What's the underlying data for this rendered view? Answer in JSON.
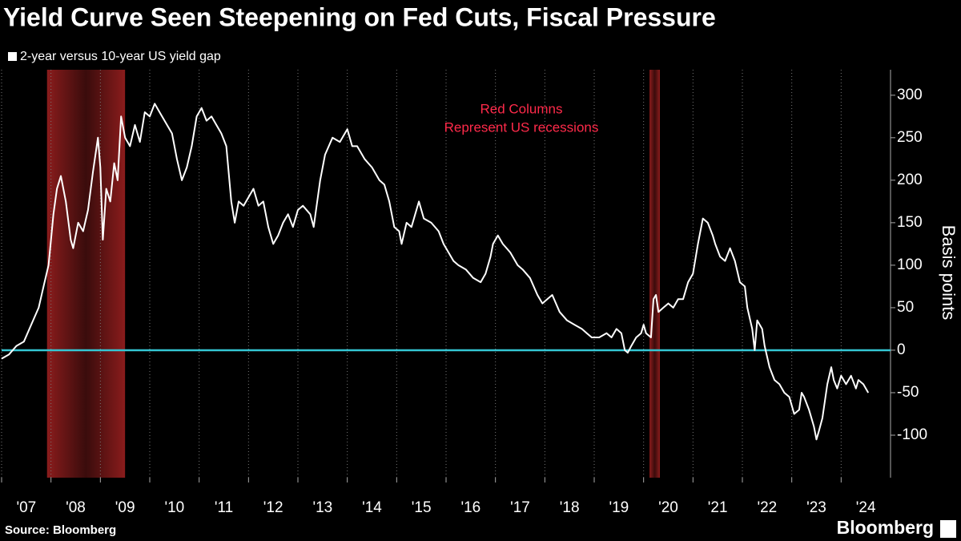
{
  "chart_data": {
    "type": "line",
    "title": "Yield Curve Seen Steepening on Fed Cuts, Fiscal Pressure",
    "ylabel": "Basis points",
    "annotation": [
      "Red Columns",
      "Represent US recessions"
    ],
    "source": "Source: Bloomberg",
    "brand": "Bloomberg",
    "xlim": [
      2007,
      2025
    ],
    "ylim": [
      -150,
      330
    ],
    "yticks": [
      -100,
      -50,
      0,
      50,
      100,
      150,
      200,
      250,
      300
    ],
    "xticks": [
      {
        "value": 2007,
        "label": "'07"
      },
      {
        "value": 2008,
        "label": "'08"
      },
      {
        "value": 2009,
        "label": "'09"
      },
      {
        "value": 2010,
        "label": "'10"
      },
      {
        "value": 2011,
        "label": "'11"
      },
      {
        "value": 2012,
        "label": "'12"
      },
      {
        "value": 2013,
        "label": "'13"
      },
      {
        "value": 2014,
        "label": "'14"
      },
      {
        "value": 2015,
        "label": "'15"
      },
      {
        "value": 2016,
        "label": "'16"
      },
      {
        "value": 2017,
        "label": "'17"
      },
      {
        "value": 2018,
        "label": "'18"
      },
      {
        "value": 2019,
        "label": "'19"
      },
      {
        "value": 2020,
        "label": "'20"
      },
      {
        "value": 2021,
        "label": "'21"
      },
      {
        "value": 2022,
        "label": "'22"
      },
      {
        "value": 2023,
        "label": "'23"
      },
      {
        "value": 2024,
        "label": "'24"
      }
    ],
    "recessions": [
      [
        2007.92,
        2009.5
      ],
      [
        2020.12,
        2020.33
      ]
    ],
    "reference_line": {
      "value": 0,
      "color": "#34c6d3"
    },
    "x": [
      2007.0,
      2007.15,
      2007.3,
      2007.45,
      2007.6,
      2007.75,
      2007.85,
      2007.95,
      2008.0,
      2008.05,
      2008.12,
      2008.2,
      2008.3,
      2008.4,
      2008.45,
      2008.55,
      2008.65,
      2008.75,
      2008.85,
      2008.95,
      2009.0,
      2009.05,
      2009.12,
      2009.2,
      2009.28,
      2009.35,
      2009.42,
      2009.5,
      2009.6,
      2009.7,
      2009.8,
      2009.9,
      2010.0,
      2010.1,
      2010.2,
      2010.3,
      2010.45,
      2010.55,
      2010.65,
      2010.75,
      2010.85,
      2010.95,
      2011.05,
      2011.15,
      2011.25,
      2011.35,
      2011.45,
      2011.55,
      2011.65,
      2011.72,
      2011.8,
      2011.9,
      2012.0,
      2012.1,
      2012.2,
      2012.3,
      2012.4,
      2012.5,
      2012.6,
      2012.7,
      2012.8,
      2012.9,
      2013.0,
      2013.1,
      2013.25,
      2013.32,
      2013.45,
      2013.55,
      2013.7,
      2013.85,
      2013.95,
      2014.0,
      2014.1,
      2014.2,
      2014.35,
      2014.5,
      2014.65,
      2014.75,
      2014.85,
      2014.95,
      2015.05,
      2015.1,
      2015.2,
      2015.3,
      2015.45,
      2015.55,
      2015.7,
      2015.85,
      2015.95,
      2016.05,
      2016.15,
      2016.25,
      2016.4,
      2016.55,
      2016.7,
      2016.8,
      2016.9,
      2016.95,
      2017.05,
      2017.15,
      2017.3,
      2017.45,
      2017.55,
      2017.7,
      2017.85,
      2017.95,
      2018.05,
      2018.15,
      2018.3,
      2018.45,
      2018.6,
      2018.75,
      2018.85,
      2018.95,
      2019.1,
      2019.25,
      2019.35,
      2019.45,
      2019.55,
      2019.62,
      2019.68,
      2019.75,
      2019.85,
      2019.95,
      2020.0,
      2020.05,
      2020.15,
      2020.2,
      2020.25,
      2020.3,
      2020.4,
      2020.5,
      2020.6,
      2020.7,
      2020.8,
      2020.9,
      2021.0,
      2021.1,
      2021.2,
      2021.3,
      2021.4,
      2021.45,
      2021.55,
      2021.65,
      2021.75,
      2021.85,
      2021.95,
      2022.05,
      2022.1,
      2022.2,
      2022.25,
      2022.3,
      2022.4,
      2022.45,
      2022.55,
      2022.65,
      2022.75,
      2022.85,
      2022.95,
      2023.05,
      2023.15,
      2023.2,
      2023.25,
      2023.35,
      2023.45,
      2023.5,
      2023.55,
      2023.62,
      2023.72,
      2023.8,
      2023.85,
      2023.92,
      2024.0,
      2024.1,
      2024.2,
      2024.3,
      2024.35,
      2024.45,
      2024.55
    ],
    "series": [
      {
        "name": "2-year versus 10-year US yield gap",
        "color": "#ffffff",
        "values": [
          -10,
          -5,
          5,
          10,
          30,
          50,
          75,
          100,
          130,
          160,
          190,
          205,
          175,
          130,
          120,
          150,
          140,
          165,
          210,
          250,
          215,
          130,
          190,
          175,
          220,
          200,
          275,
          250,
          240,
          265,
          245,
          280,
          275,
          290,
          280,
          270,
          255,
          225,
          200,
          215,
          240,
          275,
          285,
          270,
          275,
          265,
          255,
          240,
          175,
          150,
          175,
          170,
          180,
          190,
          170,
          175,
          145,
          125,
          135,
          150,
          160,
          145,
          165,
          170,
          160,
          145,
          200,
          230,
          250,
          245,
          255,
          260,
          240,
          240,
          225,
          215,
          200,
          195,
          175,
          145,
          140,
          125,
          150,
          145,
          175,
          155,
          150,
          140,
          125,
          115,
          105,
          100,
          95,
          85,
          80,
          90,
          110,
          125,
          135,
          125,
          115,
          100,
          95,
          85,
          65,
          55,
          60,
          65,
          45,
          35,
          30,
          25,
          20,
          15,
          15,
          20,
          15,
          25,
          20,
          0,
          -3,
          5,
          15,
          20,
          30,
          20,
          15,
          60,
          65,
          45,
          50,
          55,
          50,
          60,
          60,
          80,
          90,
          125,
          155,
          150,
          135,
          125,
          110,
          105,
          120,
          105,
          80,
          75,
          50,
          25,
          0,
          35,
          25,
          5,
          -20,
          -35,
          -40,
          -50,
          -55,
          -75,
          -70,
          -50,
          -55,
          -70,
          -90,
          -105,
          -95,
          -80,
          -40,
          -20,
          -35,
          -45,
          -30,
          -40,
          -30,
          -45,
          -35,
          -40,
          -50
        ]
      }
    ]
  }
}
